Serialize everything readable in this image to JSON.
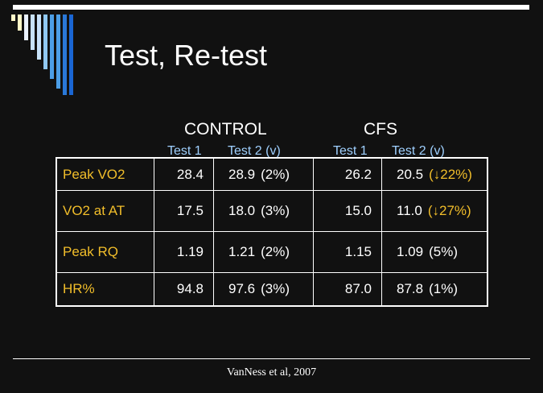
{
  "slide": {
    "title": "Test, Re-test",
    "citation": "VanNess et al, 2007"
  },
  "colors": {
    "background": "#111111",
    "foreground": "#ffffff",
    "row_label": "#f2be2a",
    "subheader": "#9fd0ff",
    "decrease_highlight": "#f2be2a",
    "decorative_stripes": [
      "#fff8c8",
      "#eaf2ff",
      "#c8e2fa",
      "#90c8f2",
      "#4c9ee6",
      "#2a78d8",
      "#1a66d4"
    ]
  },
  "table": {
    "groups": [
      {
        "name": "CONTROL",
        "test1_label": "Test 1",
        "test2_label": "Test 2  (v)"
      },
      {
        "name": "CFS",
        "test1_label": "Test 1",
        "test2_label": "Test 2  (v)"
      }
    ],
    "rows": [
      {
        "label": "Peak VO2",
        "control": {
          "test1": "28.4",
          "test2": "28.9",
          "change": "(2%)"
        },
        "cfs": {
          "test1": "26.2",
          "test2": "20.5",
          "change": "(↓22%)"
        }
      },
      {
        "label": "VO2 at AT",
        "control": {
          "test1": "17.5",
          "test2": "18.0",
          "change": "(3%)"
        },
        "cfs": {
          "test1": "15.0",
          "test2": "11.0",
          "change": "(↓27%)"
        }
      },
      {
        "label": "Peak RQ",
        "control": {
          "test1": "1.19",
          "test2": "1.21",
          "change": "(2%)"
        },
        "cfs": {
          "test1": "1.15",
          "test2": "1.09",
          "change": "(5%)"
        }
      },
      {
        "label": "HR%",
        "control": {
          "test1": "94.8",
          "test2": "97.6",
          "change": "(3%)"
        },
        "cfs": {
          "test1": "87.0",
          "test2": "87.8",
          "change": "(1%)"
        }
      }
    ]
  }
}
